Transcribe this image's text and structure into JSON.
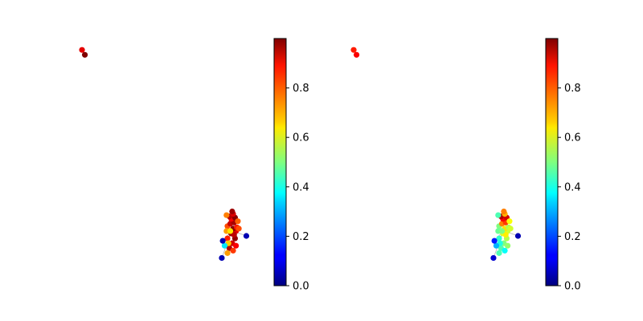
{
  "chart_data": [
    {
      "type": "scatter",
      "panel": "left",
      "colormap": "jet",
      "colorbar": {
        "min": 0.0,
        "max": 1.0,
        "ticks": [
          0.0,
          0.2,
          0.4,
          0.6,
          0.8
        ],
        "tick_labels": [
          "0.0",
          "0.2",
          "0.4",
          "0.6",
          "0.8"
        ]
      },
      "axes_visible": false,
      "xlim": [
        0,
        10
      ],
      "ylim": [
        0,
        10
      ],
      "points": [
        {
          "x": 0.3,
          "y": 9.6,
          "value": 0.9
        },
        {
          "x": 0.45,
          "y": 9.4,
          "value": 1.0
        },
        {
          "x": 8.1,
          "y": 1.5,
          "value": 0.95
        },
        {
          "x": 8.25,
          "y": 1.7,
          "value": 0.92
        },
        {
          "x": 8.4,
          "y": 1.9,
          "value": 0.98
        },
        {
          "x": 8.0,
          "y": 1.9,
          "value": 0.85
        },
        {
          "x": 8.2,
          "y": 2.1,
          "value": 0.97
        },
        {
          "x": 8.45,
          "y": 2.2,
          "value": 0.9
        },
        {
          "x": 8.3,
          "y": 2.3,
          "value": 0.99
        },
        {
          "x": 8.0,
          "y": 2.4,
          "value": 0.8
        },
        {
          "x": 8.15,
          "y": 2.5,
          "value": 0.93
        },
        {
          "x": 8.35,
          "y": 2.55,
          "value": 0.96
        },
        {
          "x": 8.2,
          "y": 2.7,
          "value": 0.88
        },
        {
          "x": 8.4,
          "y": 2.75,
          "value": 0.99
        },
        {
          "x": 8.1,
          "y": 2.8,
          "value": 0.95
        },
        {
          "x": 8.3,
          "y": 2.9,
          "value": 0.91
        },
        {
          "x": 8.55,
          "y": 2.6,
          "value": 0.78
        },
        {
          "x": 8.5,
          "y": 2.35,
          "value": 0.85
        },
        {
          "x": 7.95,
          "y": 2.2,
          "value": 0.72
        },
        {
          "x": 8.05,
          "y": 1.7,
          "value": 0.68
        },
        {
          "x": 8.3,
          "y": 1.4,
          "value": 0.82
        },
        {
          "x": 8.45,
          "y": 1.6,
          "value": 0.88
        },
        {
          "x": 7.95,
          "y": 2.85,
          "value": 0.75
        },
        {
          "x": 8.6,
          "y": 2.3,
          "value": 0.8
        },
        {
          "x": 8.25,
          "y": 3.0,
          "value": 0.97
        },
        {
          "x": 8.35,
          "y": 2.05,
          "value": 0.94
        },
        {
          "x": 8.15,
          "y": 2.2,
          "value": 0.65
        },
        {
          "x": 7.85,
          "y": 1.6,
          "value": 0.35
        },
        {
          "x": 7.75,
          "y": 1.8,
          "value": 0.05
        },
        {
          "x": 9.0,
          "y": 2.0,
          "value": 0.05
        },
        {
          "x": 7.7,
          "y": 1.1,
          "value": 0.05
        },
        {
          "x": 8.0,
          "y": 1.3,
          "value": 0.72
        }
      ]
    },
    {
      "type": "scatter",
      "panel": "right",
      "colormap": "jet",
      "colorbar": {
        "min": 0.0,
        "max": 1.0,
        "ticks": [
          0.0,
          0.2,
          0.4,
          0.6,
          0.8
        ],
        "tick_labels": [
          "0.0",
          "0.2",
          "0.4",
          "0.6",
          "0.8"
        ]
      },
      "axes_visible": false,
      "xlim": [
        0,
        10
      ],
      "ylim": [
        0,
        10
      ],
      "points": [
        {
          "x": 0.3,
          "y": 9.6,
          "value": 0.85
        },
        {
          "x": 0.45,
          "y": 9.4,
          "value": 0.88
        },
        {
          "x": 8.1,
          "y": 1.5,
          "value": 0.45
        },
        {
          "x": 8.25,
          "y": 1.7,
          "value": 0.5
        },
        {
          "x": 8.4,
          "y": 1.9,
          "value": 0.55
        },
        {
          "x": 8.0,
          "y": 1.9,
          "value": 0.42
        },
        {
          "x": 8.2,
          "y": 2.1,
          "value": 0.6
        },
        {
          "x": 8.45,
          "y": 2.2,
          "value": 0.58
        },
        {
          "x": 8.3,
          "y": 2.3,
          "value": 0.65
        },
        {
          "x": 8.0,
          "y": 2.4,
          "value": 0.5
        },
        {
          "x": 8.15,
          "y": 2.5,
          "value": 0.75
        },
        {
          "x": 8.35,
          "y": 2.55,
          "value": 0.82
        },
        {
          "x": 8.2,
          "y": 2.7,
          "value": 0.88
        },
        {
          "x": 8.4,
          "y": 2.75,
          "value": 0.92
        },
        {
          "x": 8.1,
          "y": 2.8,
          "value": 0.95
        },
        {
          "x": 8.3,
          "y": 2.9,
          "value": 0.7
        },
        {
          "x": 8.55,
          "y": 2.6,
          "value": 0.62
        },
        {
          "x": 8.5,
          "y": 2.35,
          "value": 0.55
        },
        {
          "x": 7.95,
          "y": 2.2,
          "value": 0.48
        },
        {
          "x": 8.05,
          "y": 1.7,
          "value": 0.4
        },
        {
          "x": 8.3,
          "y": 1.4,
          "value": 0.38
        },
        {
          "x": 8.45,
          "y": 1.6,
          "value": 0.52
        },
        {
          "x": 7.95,
          "y": 2.85,
          "value": 0.45
        },
        {
          "x": 8.6,
          "y": 2.3,
          "value": 0.58
        },
        {
          "x": 8.25,
          "y": 3.0,
          "value": 0.75
        },
        {
          "x": 8.35,
          "y": 2.05,
          "value": 0.64
        },
        {
          "x": 8.15,
          "y": 2.2,
          "value": 0.5
        },
        {
          "x": 7.85,
          "y": 1.6,
          "value": 0.3
        },
        {
          "x": 7.75,
          "y": 1.8,
          "value": 0.15
        },
        {
          "x": 9.0,
          "y": 2.0,
          "value": 0.05
        },
        {
          "x": 7.7,
          "y": 1.1,
          "value": 0.08
        },
        {
          "x": 8.0,
          "y": 1.3,
          "value": 0.45
        }
      ]
    }
  ]
}
